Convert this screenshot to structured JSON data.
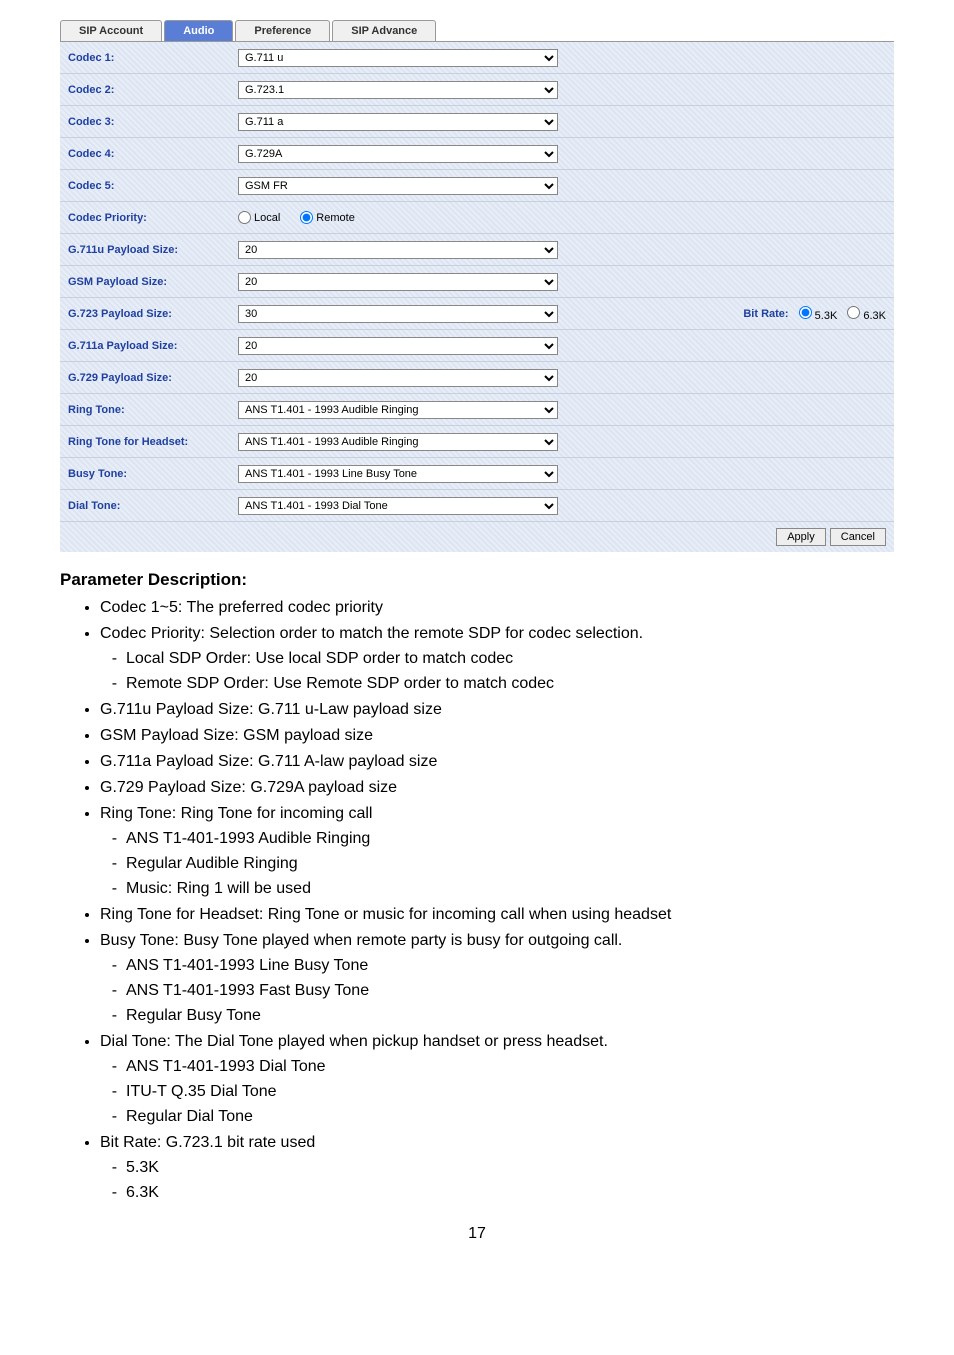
{
  "tabs": {
    "t0": "SIP Account",
    "t1": "Audio",
    "t2": "Preference",
    "t3": "SIP Advance"
  },
  "labels": {
    "codec1": "Codec 1:",
    "codec2": "Codec 2:",
    "codec3": "Codec 3:",
    "codec4": "Codec 4:",
    "codec5": "Codec 5:",
    "codecPriority": "Codec Priority:",
    "g711u": "G.711u Payload Size:",
    "gsm": "GSM Payload Size:",
    "g723": "G.723 Payload Size:",
    "g711a": "G.711a Payload Size:",
    "g729": "G.729 Payload Size:",
    "ringTone": "Ring Tone:",
    "ringHeadset": "Ring Tone for Headset:",
    "busyTone": "Busy Tone:",
    "dialTone": "Dial Tone:",
    "bitRate": "Bit Rate:"
  },
  "values": {
    "codec1": "G.711 u",
    "codec2": "G.723.1",
    "codec3": "G.711 a",
    "codec4": "G.729A",
    "codec5": "GSM FR",
    "localOpt": "Local",
    "remoteOpt": "Remote",
    "g711u": "20",
    "gsm": "20",
    "g723": "30",
    "g711a": "20",
    "g729": "20",
    "ringTone": "ANS T1.401 - 1993 Audible Ringing",
    "ringHeadset": "ANS T1.401 - 1993 Audible Ringing",
    "busyTone": "ANS T1.401 - 1993 Line Busy Tone",
    "dialTone": "ANS T1.401 - 1993 Dial Tone",
    "br53": "5.3K",
    "br63": "6.3K",
    "apply": "Apply",
    "cancel": "Cancel"
  },
  "doc": {
    "heading": "Parameter Description:",
    "b1": "Codec 1~5: The preferred codec priority",
    "b2": "Codec Priority: Selection order to match the remote SDP for codec selection.",
    "b2a": "Local SDP Order: Use local SDP order to match codec",
    "b2b": "Remote SDP Order: Use Remote SDP order to match codec",
    "b3": "G.711u Payload Size: G.711 u-Law payload size",
    "b4": "GSM Payload Size: GSM payload size",
    "b5": "G.711a Payload Size: G.711 A-law payload size",
    "b6": "G.729 Payload Size: G.729A payload size",
    "b7": "Ring Tone: Ring Tone for incoming call",
    "b7a": "ANS T1-401-1993 Audible Ringing",
    "b7b": "Regular Audible Ringing",
    "b7c": "Music: Ring 1 will be used",
    "b8": "Ring Tone for Headset: Ring Tone or music for incoming call when using headset",
    "b9": "Busy Tone: Busy Tone played when remote party is busy for outgoing call.",
    "b9a": "ANS T1-401-1993 Line Busy Tone",
    "b9b": "ANS T1-401-1993 Fast Busy Tone",
    "b9c": "Regular Busy Tone",
    "b10": "Dial Tone: The Dial Tone played when pickup handset or press headset.",
    "b10a": "ANS T1-401-1993 Dial Tone",
    "b10b": "ITU-T Q.35 Dial Tone",
    "b10c": "Regular Dial Tone",
    "b11": "Bit Rate: G.723.1 bit rate used",
    "b11a": "5.3K",
    "b11b": "6.3K",
    "pagenum": "17"
  },
  "colors": {
    "tabActive": "#5a7dd6",
    "labelColor": "#2040a0",
    "stripeA": "#e8eef7",
    "stripeB": "#dde5f2"
  }
}
